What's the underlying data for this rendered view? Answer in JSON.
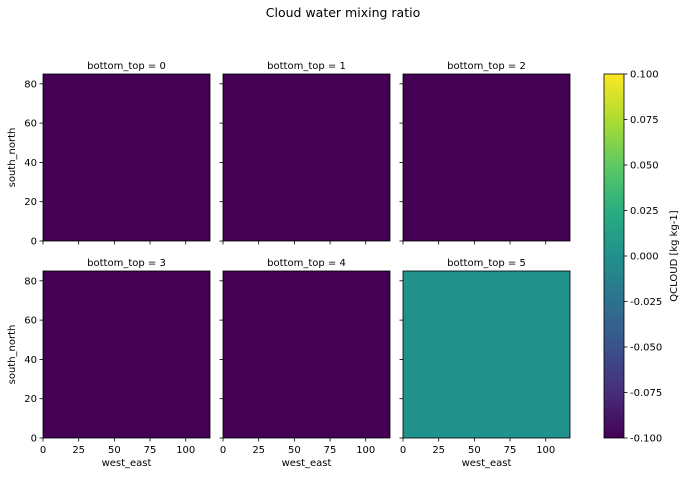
{
  "chart_data": {
    "type": "heatmap",
    "title": "Cloud water mixing ratio",
    "xlabel": "west_east",
    "ylabel": "south_north",
    "xlim": [
      0,
      117
    ],
    "ylim": [
      0,
      85
    ],
    "xticks": [
      "0",
      "25",
      "50",
      "75",
      "100"
    ],
    "yticks": [
      "0",
      "20",
      "40",
      "60",
      "80"
    ],
    "panels": [
      {
        "title": "bottom_top = 0",
        "value": -0.1
      },
      {
        "title": "bottom_top = 1",
        "value": -0.1
      },
      {
        "title": "bottom_top = 2",
        "value": -0.1
      },
      {
        "title": "bottom_top = 3",
        "value": -0.1
      },
      {
        "title": "bottom_top = 4",
        "value": -0.1
      },
      {
        "title": "bottom_top = 5",
        "value": 0.0
      }
    ],
    "colorbar": {
      "label": "QCLOUD [kg kg-1]",
      "range": [
        -0.1,
        0.1
      ],
      "colormap": "viridis",
      "ticks": [
        "0.100",
        "0.075",
        "0.050",
        "0.025",
        "0.000",
        "-0.025",
        "-0.050",
        "-0.075",
        "-0.100"
      ]
    }
  }
}
